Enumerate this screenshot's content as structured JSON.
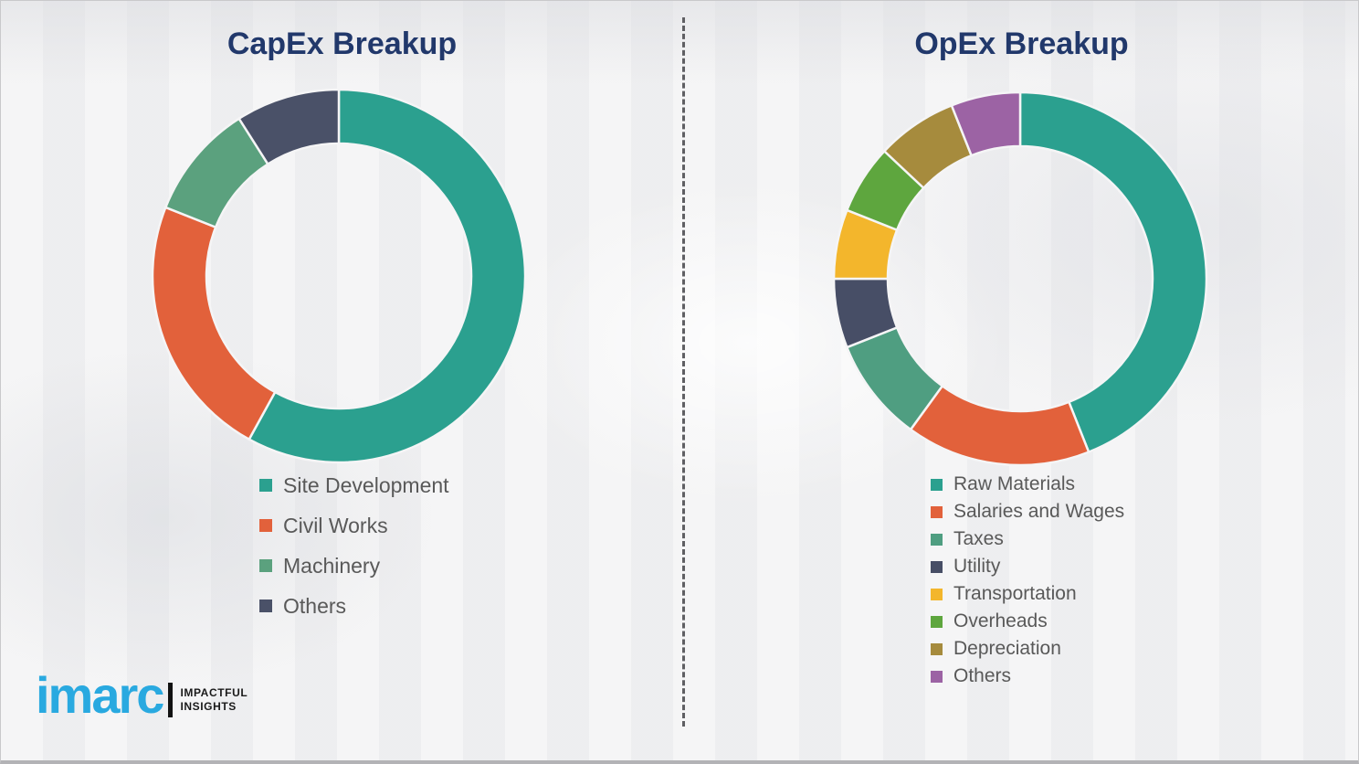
{
  "page": {
    "background_color": "#f1f1f2",
    "title_color": "#21386b",
    "legend_text_color": "#595959",
    "divider_style": "vertical-dashed"
  },
  "logo": {
    "brand": "imarc",
    "brand_color": "#29a9e0",
    "tagline_line1": "IMPACTFUL",
    "tagline_line2": "INSIGHTS"
  },
  "chart_data": [
    {
      "type": "pie",
      "variant": "donut",
      "title": "CapEx Breakup",
      "legend_position": "bottom-left",
      "start_angle_deg": 0,
      "direction": "clockwise",
      "categories": [
        "Site Development",
        "Civil Works",
        "Machinery",
        "Others"
      ],
      "values": [
        58,
        23,
        10,
        9
      ],
      "colors": [
        "#2ba08f",
        "#e2613b",
        "#5ba17e",
        "#4a5168"
      ]
    },
    {
      "type": "pie",
      "variant": "donut",
      "title": "OpEx Breakup",
      "legend_position": "bottom-left",
      "start_angle_deg": 0,
      "direction": "clockwise",
      "categories": [
        "Raw Materials",
        "Salaries and Wages",
        "Taxes",
        "Utility",
        "Transportation",
        "Overheads",
        "Depreciation",
        "Others"
      ],
      "values": [
        44,
        16,
        9,
        6,
        6,
        6,
        7,
        6
      ],
      "colors": [
        "#2ba08f",
        "#e2613b",
        "#4f9e81",
        "#474e66",
        "#f3b62c",
        "#5ea63e",
        "#a68b3d",
        "#9c63a4"
      ]
    }
  ]
}
